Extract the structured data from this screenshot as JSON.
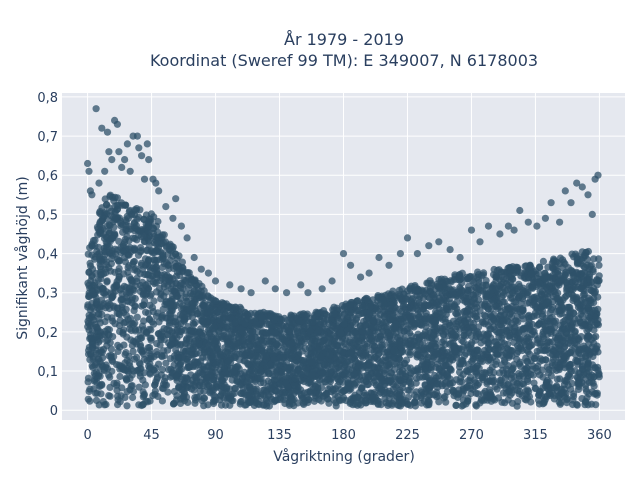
{
  "chart_data": {
    "type": "scatter",
    "title": "År 1979 - 2019",
    "subtitle": "Koordinat (Sweref 99 TM): E 349007, N 6178003",
    "xlabel": "Vågriktning (grader)",
    "ylabel": "Signifikant våghöjd (m)",
    "xlim": [
      -18,
      378
    ],
    "ylim": [
      -0.025,
      0.81
    ],
    "x_ticks": [
      0,
      45,
      90,
      135,
      180,
      225,
      270,
      315,
      360
    ],
    "x_tick_labels": [
      "0",
      "45",
      "90",
      "135",
      "180",
      "225",
      "270",
      "315",
      "360"
    ],
    "y_ticks": [
      0,
      0.1,
      0.2,
      0.3,
      0.4,
      0.5,
      0.6,
      0.7,
      0.8
    ],
    "y_tick_labels": [
      "0",
      "0,1",
      "0,2",
      "0,3",
      "0,4",
      "0,5",
      "0,6",
      "0,7",
      "0,8"
    ],
    "grid": true,
    "marker_color": "#2f5169",
    "background_color": "#e5e8ef",
    "upper_envelope": {
      "x": [
        0,
        5,
        10,
        15,
        20,
        25,
        30,
        35,
        40,
        45,
        50,
        55,
        60,
        65,
        70,
        75,
        80,
        85,
        90,
        100,
        110,
        120,
        130,
        140,
        150,
        160,
        170,
        180,
        190,
        200,
        210,
        220,
        230,
        240,
        250,
        260,
        270,
        280,
        290,
        300,
        310,
        320,
        330,
        340,
        350,
        360
      ],
      "y": [
        0.4,
        0.47,
        0.53,
        0.55,
        0.55,
        0.54,
        0.53,
        0.52,
        0.52,
        0.51,
        0.48,
        0.45,
        0.42,
        0.39,
        0.36,
        0.34,
        0.32,
        0.3,
        0.28,
        0.27,
        0.26,
        0.25,
        0.25,
        0.24,
        0.25,
        0.25,
        0.26,
        0.27,
        0.28,
        0.29,
        0.3,
        0.31,
        0.32,
        0.33,
        0.34,
        0.35,
        0.35,
        0.36,
        0.36,
        0.37,
        0.37,
        0.38,
        0.39,
        0.4,
        0.41,
        0.39
      ]
    },
    "outliers": [
      {
        "x": 0,
        "y": 0.63
      },
      {
        "x": 1,
        "y": 0.61
      },
      {
        "x": 2,
        "y": 0.56
      },
      {
        "x": 3,
        "y": 0.55
      },
      {
        "x": 6,
        "y": 0.77
      },
      {
        "x": 8,
        "y": 0.58
      },
      {
        "x": 10,
        "y": 0.72
      },
      {
        "x": 12,
        "y": 0.61
      },
      {
        "x": 14,
        "y": 0.71
      },
      {
        "x": 15,
        "y": 0.66
      },
      {
        "x": 17,
        "y": 0.64
      },
      {
        "x": 19,
        "y": 0.74
      },
      {
        "x": 21,
        "y": 0.73
      },
      {
        "x": 22,
        "y": 0.66
      },
      {
        "x": 24,
        "y": 0.62
      },
      {
        "x": 26,
        "y": 0.64
      },
      {
        "x": 28,
        "y": 0.68
      },
      {
        "x": 30,
        "y": 0.61
      },
      {
        "x": 32,
        "y": 0.7
      },
      {
        "x": 35,
        "y": 0.7
      },
      {
        "x": 36,
        "y": 0.67
      },
      {
        "x": 38,
        "y": 0.65
      },
      {
        "x": 40,
        "y": 0.59
      },
      {
        "x": 42,
        "y": 0.68
      },
      {
        "x": 43,
        "y": 0.64
      },
      {
        "x": 46,
        "y": 0.59
      },
      {
        "x": 48,
        "y": 0.58
      },
      {
        "x": 50,
        "y": 0.56
      },
      {
        "x": 55,
        "y": 0.52
      },
      {
        "x": 60,
        "y": 0.49
      },
      {
        "x": 62,
        "y": 0.54
      },
      {
        "x": 66,
        "y": 0.47
      },
      {
        "x": 70,
        "y": 0.44
      },
      {
        "x": 75,
        "y": 0.39
      },
      {
        "x": 80,
        "y": 0.36
      },
      {
        "x": 85,
        "y": 0.35
      },
      {
        "x": 90,
        "y": 0.33
      },
      {
        "x": 100,
        "y": 0.32
      },
      {
        "x": 108,
        "y": 0.31
      },
      {
        "x": 115,
        "y": 0.3
      },
      {
        "x": 125,
        "y": 0.33
      },
      {
        "x": 132,
        "y": 0.31
      },
      {
        "x": 140,
        "y": 0.3
      },
      {
        "x": 150,
        "y": 0.32
      },
      {
        "x": 155,
        "y": 0.3
      },
      {
        "x": 165,
        "y": 0.31
      },
      {
        "x": 172,
        "y": 0.33
      },
      {
        "x": 180,
        "y": 0.4
      },
      {
        "x": 185,
        "y": 0.37
      },
      {
        "x": 192,
        "y": 0.34
      },
      {
        "x": 198,
        "y": 0.35
      },
      {
        "x": 205,
        "y": 0.39
      },
      {
        "x": 212,
        "y": 0.37
      },
      {
        "x": 220,
        "y": 0.4
      },
      {
        "x": 225,
        "y": 0.44
      },
      {
        "x": 232,
        "y": 0.4
      },
      {
        "x": 240,
        "y": 0.42
      },
      {
        "x": 247,
        "y": 0.43
      },
      {
        "x": 255,
        "y": 0.41
      },
      {
        "x": 262,
        "y": 0.39
      },
      {
        "x": 270,
        "y": 0.46
      },
      {
        "x": 276,
        "y": 0.43
      },
      {
        "x": 282,
        "y": 0.47
      },
      {
        "x": 290,
        "y": 0.45
      },
      {
        "x": 296,
        "y": 0.47
      },
      {
        "x": 300,
        "y": 0.46
      },
      {
        "x": 304,
        "y": 0.51
      },
      {
        "x": 310,
        "y": 0.48
      },
      {
        "x": 316,
        "y": 0.47
      },
      {
        "x": 322,
        "y": 0.49
      },
      {
        "x": 326,
        "y": 0.53
      },
      {
        "x": 332,
        "y": 0.48
      },
      {
        "x": 336,
        "y": 0.56
      },
      {
        "x": 340,
        "y": 0.53
      },
      {
        "x": 344,
        "y": 0.58
      },
      {
        "x": 348,
        "y": 0.57
      },
      {
        "x": 352,
        "y": 0.55
      },
      {
        "x": 355,
        "y": 0.5
      },
      {
        "x": 357,
        "y": 0.59
      },
      {
        "x": 359,
        "y": 0.6
      }
    ]
  }
}
